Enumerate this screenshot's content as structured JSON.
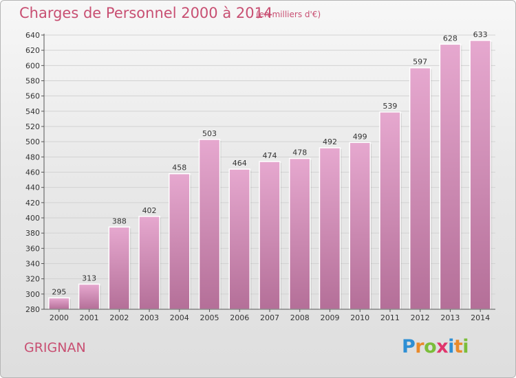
{
  "header": {
    "title": "Charges de Personnel 2000 à 2014",
    "unit_note": "(en milliers d'€)"
  },
  "footer": {
    "place": "GRIGNAN",
    "logo_text": "Proxiti",
    "logo_letters": [
      {
        "ch": "P",
        "color": "#2e8fd4"
      },
      {
        "ch": "r",
        "color": "#e98a2b"
      },
      {
        "ch": "o",
        "color": "#7bbd3a"
      },
      {
        "ch": "x",
        "color": "#e0356c"
      },
      {
        "ch": "i",
        "color": "#2e8fd4"
      },
      {
        "ch": "t",
        "color": "#e98a2b"
      },
      {
        "ch": "i",
        "color": "#7bbd3a"
      }
    ]
  },
  "colors": {
    "accent_text": "#c84f72",
    "bar_top": "#e6a8cf",
    "bar_bottom": "#b46f98"
  },
  "chart_data": {
    "type": "bar",
    "title": "Charges de Personnel 2000 à 2014",
    "subtitle": "(en milliers d'€)",
    "xlabel": "",
    "ylabel": "",
    "categories": [
      "2000",
      "2001",
      "2002",
      "2003",
      "2004",
      "2005",
      "2006",
      "2007",
      "2008",
      "2009",
      "2010",
      "2011",
      "2012",
      "2013",
      "2014"
    ],
    "values": [
      295,
      313,
      388,
      402,
      458,
      503,
      464,
      474,
      478,
      492,
      499,
      539,
      597,
      628,
      633
    ],
    "ylim": [
      280,
      640
    ],
    "yticks": [
      280,
      300,
      320,
      340,
      360,
      380,
      400,
      420,
      440,
      460,
      480,
      500,
      520,
      540,
      560,
      580,
      600,
      620,
      640
    ],
    "grid": true,
    "legend": "none"
  }
}
